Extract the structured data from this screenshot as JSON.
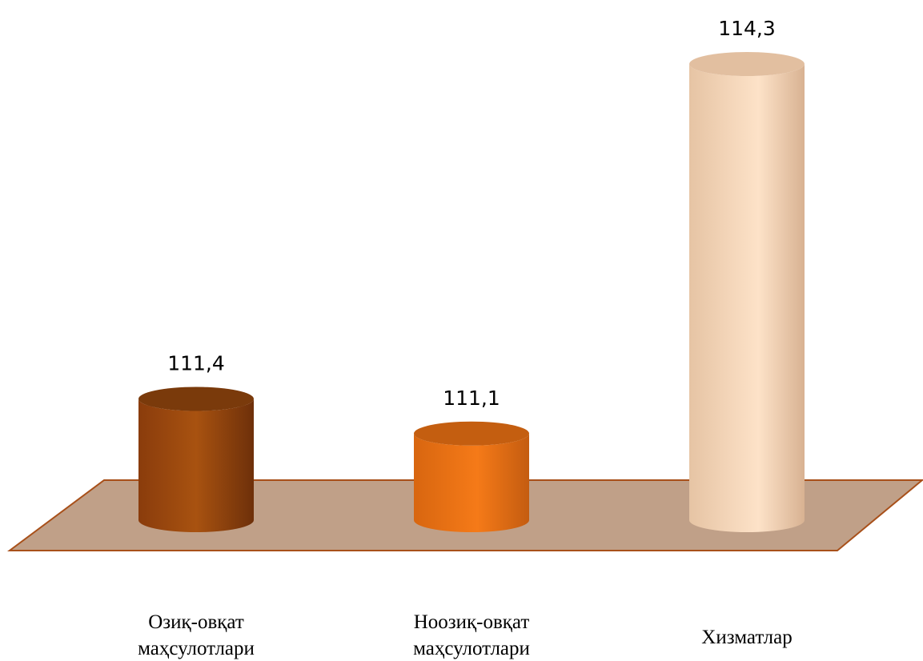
{
  "chart_data": {
    "type": "bar",
    "categories": [
      [
        "Озиқ-овқат",
        "маҳсулотлари"
      ],
      [
        "Ноозиқ-овқат",
        "маҳсулотлари"
      ],
      [
        "Хизматлар"
      ]
    ],
    "values": [
      111.4,
      111.1,
      114.3
    ],
    "data_labels": [
      "111,4",
      "111,1",
      "114,3"
    ],
    "title": "",
    "xlabel": "",
    "ylabel": "",
    "ylim": [
      110.35,
      114.3
    ],
    "grid": false,
    "legend": "none",
    "style": "3d-cylinder",
    "colors": {
      "bars": [
        "#A04A10",
        "#F07818",
        "#FBD9BA"
      ],
      "bar_tops": [
        "#7A3A0B",
        "#C45E10",
        "#E2BFA0"
      ],
      "floor": "#C0A088",
      "floor_edge": "#A8501A"
    }
  }
}
